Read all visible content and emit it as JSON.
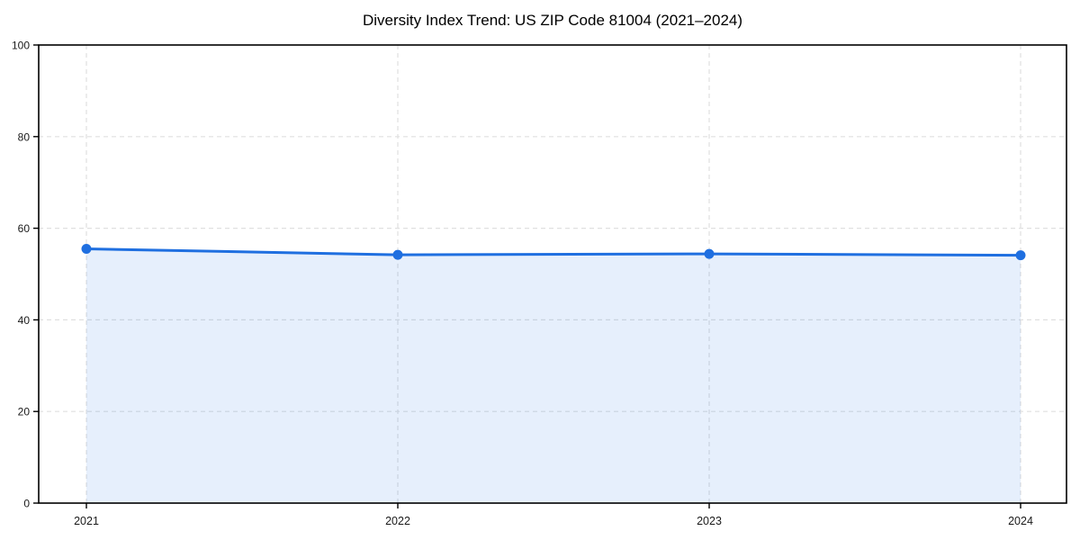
{
  "chart_data": {
    "type": "area",
    "title": "Diversity Index Trend: US ZIP Code 81004 (2021–2024)",
    "categories": [
      "2021",
      "2022",
      "2023",
      "2024"
    ],
    "x": [
      2021,
      2022,
      2023,
      2024
    ],
    "series": [
      {
        "name": "Diversity Index",
        "values": [
          55.5,
          54.2,
          54.4,
          54.1
        ]
      }
    ],
    "xlabel": "",
    "ylabel": "",
    "ylim": [
      0,
      100
    ],
    "yticks": [
      0,
      20,
      40,
      60,
      80,
      100
    ],
    "grid": true,
    "grid_style": "dashed",
    "legend_position": "none",
    "colors": {
      "line": "#1f6fe0",
      "marker": "#1f6fe0",
      "fill": "rgba(31, 111, 224, 0.11)",
      "grid": "#e0e0e0",
      "spine": "#000000",
      "tick_label": "#1a1a1a",
      "title": "#000000",
      "background": "#ffffff"
    }
  }
}
